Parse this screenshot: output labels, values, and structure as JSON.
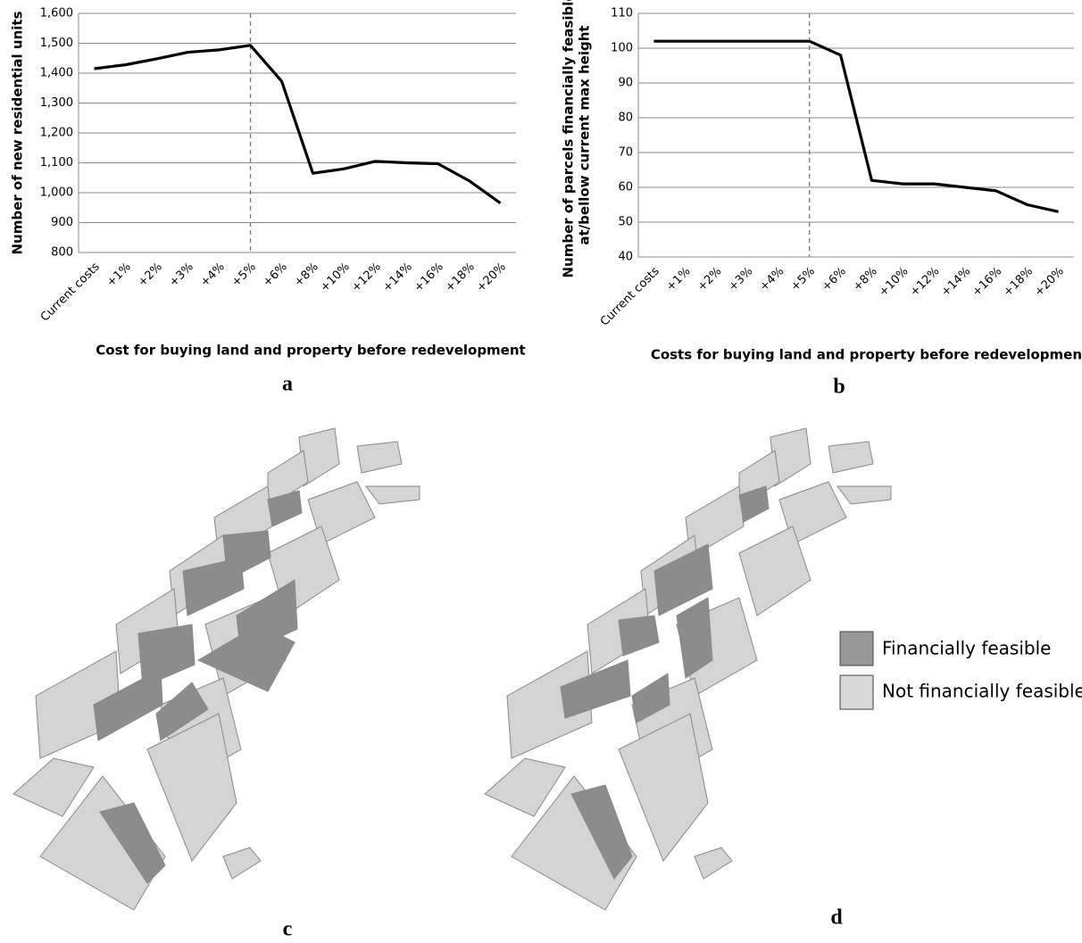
{
  "chart_data": [
    {
      "type": "line",
      "ylabel": "Number of new residential units",
      "xlabel": "Cost for buying land and property before redevelopment",
      "categories": [
        "Current costs",
        "+1%",
        "+2%",
        "+3%",
        "+4%",
        "+5%",
        "+6%",
        "+8%",
        "+10%",
        "+12%",
        "+14%",
        "+16%",
        "+18%",
        "+20%"
      ],
      "values": [
        1415,
        1428,
        1448,
        1470,
        1478,
        1493,
        1373,
        1065,
        1080,
        1105,
        1100,
        1097,
        1040,
        965
      ],
      "color": "#000000",
      "vline_index": 5,
      "ylim": [
        800,
        1600
      ],
      "yticks": [
        800,
        900,
        {
          "value": 1000,
          "label": "1,000"
        },
        {
          "value": 1100,
          "label": "1,100"
        },
        {
          "value": 1200,
          "label": "1,200"
        },
        {
          "value": 1300,
          "label": "1,300"
        },
        {
          "value": 1400,
          "label": "1,400"
        },
        {
          "value": 1500,
          "label": "1,500"
        },
        {
          "value": 1600,
          "label": "1,600"
        }
      ],
      "grid": true,
      "panel": "a"
    },
    {
      "type": "line",
      "ylabel": [
        "Number of parcels financially feasible",
        "at/bellow current  max height"
      ],
      "xlabel": "Costs for buying land and property before redevelopment",
      "categories": [
        "Current costs",
        "+1%",
        "+2%",
        "+3%",
        "+4%",
        "+5%",
        "+6%",
        "+8%",
        "+10%",
        "+12%",
        "+14%",
        "+16%",
        "+18%",
        "+20%"
      ],
      "values": [
        102,
        102,
        102,
        102,
        102,
        102,
        98,
        62,
        61,
        61,
        60,
        59,
        55,
        53
      ],
      "color": "#000000",
      "vline_index": 5,
      "ylim": [
        40,
        110
      ],
      "yticks": [
        40,
        50,
        60,
        70,
        80,
        90,
        100,
        110
      ],
      "grid": true,
      "panel": "b"
    }
  ],
  "maps": {
    "panels": [
      "c",
      "d"
    ],
    "legend": [
      "Financially feasible",
      "Not financially feasible"
    ]
  }
}
